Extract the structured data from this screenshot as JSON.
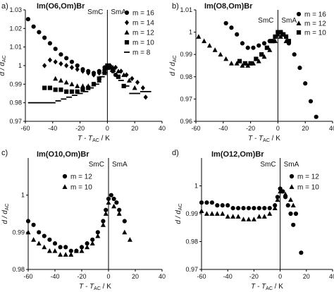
{
  "chart_data": [
    {
      "type": "scatter",
      "panel_letter": "a)",
      "title": "Im(O6,Om)Br",
      "xlabel": "T - T_AC / K",
      "ylabel": "d / d_AC",
      "xlim": [
        -60,
        40
      ],
      "ylim": [
        0.97,
        1.03
      ],
      "xticks": [
        -60,
        -40,
        -20,
        0,
        20,
        40
      ],
      "yticks": [
        0.97,
        0.98,
        0.99,
        1,
        1.01,
        1.02,
        1.03
      ],
      "ytick_labels": [
        "0.97",
        "0.98",
        "0.99",
        "1",
        "1.01",
        "1.02",
        "1.03"
      ],
      "phase_labels": {
        "left": "SmC",
        "right": "SmA"
      },
      "phase_boundary_x": 0,
      "legend_position": "right",
      "series": [
        {
          "name": "m = 16",
          "marker": "circle",
          "x": [
            -58,
            -54,
            -50,
            -46,
            -42,
            -38,
            -34,
            -30,
            -26,
            -22,
            -18,
            -14,
            -10,
            -6,
            -2,
            0,
            2,
            4,
            6
          ],
          "y": [
            1.025,
            1.021,
            1.018,
            1.015,
            1.012,
            1.009,
            1.006,
            1.004,
            1.002,
            1.0,
            0.998,
            0.997,
            0.996,
            0.997,
            0.999,
            1.0,
            0.999,
            0.997,
            0.995
          ]
        },
        {
          "name": "m = 14",
          "marker": "diamond",
          "x": [
            -46,
            -42,
            -38,
            -34,
            -30,
            -26,
            -22,
            -18,
            -14,
            -10,
            -6,
            -2,
            0,
            2,
            6,
            10,
            14,
            18,
            22,
            26,
            28
          ],
          "y": [
            1.0,
            1.003,
            1.002,
            1.001,
            1.0,
            0.999,
            0.998,
            0.997,
            0.996,
            0.995,
            0.996,
            0.998,
            1.0,
            1.0,
            0.999,
            0.997,
            0.995,
            0.993,
            0.991,
            0.988,
            0.983
          ]
        },
        {
          "name": "m = 12",
          "marker": "triangle",
          "x": [
            -38,
            -34,
            -30,
            -26,
            -22,
            -18,
            -14,
            -10,
            -6,
            -2,
            0,
            4,
            8,
            12,
            16,
            20
          ],
          "y": [
            0.993,
            0.992,
            0.991,
            0.99,
            0.989,
            0.989,
            0.989,
            0.99,
            0.992,
            0.996,
            0.999,
            0.999,
            0.997,
            0.995,
            0.992,
            0.988
          ]
        },
        {
          "name": "m = 10",
          "marker": "square",
          "x": [
            -46,
            -42,
            -38,
            -34,
            -30,
            -26,
            -22,
            -18,
            -14,
            -10,
            -6,
            -2,
            0,
            4,
            8,
            12
          ],
          "y": [
            0.988,
            0.988,
            0.987,
            0.987,
            0.986,
            0.986,
            0.986,
            0.987,
            0.988,
            0.99,
            0.993,
            0.997,
            1.0,
            0.998,
            0.994,
            0.989
          ]
        },
        {
          "name": "m = 8",
          "marker": "dash",
          "x": [
            -56,
            -52,
            -48,
            -44,
            -40,
            -36,
            -32,
            -28,
            -24,
            -20,
            -16,
            -12,
            -8,
            -4,
            -2,
            0,
            4,
            10,
            14,
            18,
            22,
            26,
            30
          ],
          "y": [
            0.98,
            0.98,
            0.98,
            0.98,
            0.98,
            0.981,
            0.982,
            0.983,
            0.984,
            0.985,
            0.986,
            0.988,
            0.99,
            0.994,
            0.996,
            0.998,
            0.997,
            0.992,
            0.989,
            0.985,
            0.985,
            0.986,
            0.986
          ]
        }
      ]
    },
    {
      "type": "scatter",
      "panel_letter": "b)",
      "title": "Im(O8,Om)Br",
      "xlabel": "T - T_AC / K",
      "ylabel": "d / d_AC",
      "xlim": [
        -60,
        40
      ],
      "ylim": [
        0.96,
        1.01
      ],
      "xticks": [
        -60,
        -40,
        -20,
        0,
        20,
        40
      ],
      "yticks": [
        0.96,
        0.97,
        0.98,
        0.99,
        1,
        1.01
      ],
      "ytick_labels": [
        "0.96",
        "0.97",
        "0.98",
        "0.99",
        "1",
        "1.01"
      ],
      "phase_labels": {
        "left": "SmC",
        "right": "SmA"
      },
      "phase_boundary_x": 0,
      "legend_position": "top-right",
      "series": [
        {
          "name": "m = 16",
          "marker": "circle",
          "x": [
            -38,
            -34,
            -30,
            -26,
            -22,
            -18,
            -14,
            -10,
            -6,
            -2,
            0,
            2,
            4,
            8,
            12,
            16,
            20,
            24,
            28
          ],
          "y": [
            1.004,
            1.002,
            0.999,
            0.995,
            0.993,
            0.993,
            0.994,
            0.995,
            0.996,
            0.998,
            1.0,
            1.0,
            0.999,
            0.995,
            0.99,
            0.984,
            0.977,
            0.969,
            0.962
          ]
        },
        {
          "name": "m = 12",
          "marker": "triangle",
          "x": [
            -58,
            -54,
            -50,
            -46,
            -42,
            -38,
            -34,
            -30,
            -26,
            -22,
            -18,
            -14,
            -10,
            -6,
            -2,
            0,
            2,
            6
          ],
          "y": [
            0.998,
            0.996,
            0.994,
            0.992,
            0.99,
            0.988,
            0.986,
            0.986,
            0.985,
            0.985,
            0.986,
            0.987,
            0.989,
            0.992,
            0.996,
            0.999,
            0.998,
            0.996
          ]
        },
        {
          "name": "m = 10",
          "marker": "square",
          "x": [
            -28,
            -24,
            -20,
            -16,
            -12,
            -8,
            -4,
            -2,
            0,
            2,
            4,
            6,
            8
          ],
          "y": [
            0.987,
            0.986,
            0.986,
            0.988,
            0.99,
            0.993,
            0.996,
            0.998,
            1.0,
            1.0,
            0.999,
            0.998,
            0.996
          ]
        }
      ]
    },
    {
      "type": "scatter",
      "panel_letter": "c)",
      "title": "Im(O10,Om)Br",
      "xlabel": "T - T_AC / K",
      "ylabel": "d / d_AC",
      "xlim": [
        -60,
        40
      ],
      "ylim": [
        0.98,
        1.01
      ],
      "xticks": [
        -60,
        -40,
        -20,
        0,
        20,
        40
      ],
      "yticks": [
        0.98,
        0.99,
        1
      ],
      "ytick_labels": [
        "0.98",
        "0.99",
        "1"
      ],
      "phase_labels": {
        "left": "SmC",
        "right": "SmA"
      },
      "phase_boundary_x": 0,
      "legend_position": "top-left",
      "series": [
        {
          "name": "m = 12",
          "marker": "circle",
          "x": [
            -60,
            -56,
            -52,
            -48,
            -44,
            -40,
            -36,
            -32,
            -28,
            -24,
            -20,
            -16,
            -12,
            -8,
            -4,
            -2,
            0,
            2,
            4,
            6,
            8,
            12
          ],
          "y": [
            0.993,
            0.992,
            0.99,
            0.989,
            0.988,
            0.987,
            0.986,
            0.986,
            0.985,
            0.985,
            0.986,
            0.987,
            0.988,
            0.99,
            0.993,
            0.996,
            0.999,
            1.0,
            0.999,
            0.998,
            0.996,
            0.993
          ]
        },
        {
          "name": "m = 10",
          "marker": "triangle",
          "x": [
            -60,
            -56,
            -52,
            -48,
            -44,
            -40,
            -36,
            -32,
            -28,
            -24,
            -20,
            -16,
            -12,
            -8,
            -4,
            -2,
            0,
            4,
            8,
            12,
            16
          ],
          "y": [
            0.99,
            0.988,
            0.987,
            0.986,
            0.985,
            0.985,
            0.984,
            0.984,
            0.984,
            0.985,
            0.985,
            0.986,
            0.987,
            0.989,
            0.992,
            0.995,
            0.998,
            0.997,
            0.995,
            0.99,
            0.988
          ]
        }
      ]
    },
    {
      "type": "scatter",
      "panel_letter": "d)",
      "title": "Im(O12,Om)Br",
      "xlabel": "T - T_AC / K",
      "ylabel": "d / d_AC",
      "xlim": [
        -60,
        40
      ],
      "ylim": [
        0.97,
        1.01
      ],
      "xticks": [
        -60,
        -40,
        -20,
        0,
        20,
        40
      ],
      "yticks": [
        0.97,
        0.98,
        0.99,
        1
      ],
      "ytick_labels": [
        "0.97",
        "0.98",
        "0.99",
        "1"
      ],
      "phase_labels": {
        "left": "SmC",
        "right": "SmA"
      },
      "phase_boundary_x": 0,
      "legend_position": "top-right",
      "series": [
        {
          "name": "m = 12",
          "marker": "circle",
          "x": [
            -60,
            -56,
            -52,
            -48,
            -44,
            -40,
            -36,
            -32,
            -28,
            -24,
            -20,
            -16,
            -12,
            -8,
            -4,
            -2,
            0,
            2,
            4,
            6,
            8,
            10,
            12,
            16
          ],
          "y": [
            0.994,
            0.994,
            0.994,
            0.993,
            0.993,
            0.993,
            0.992,
            0.992,
            0.992,
            0.992,
            0.992,
            0.992,
            0.992,
            0.992,
            0.993,
            0.996,
            0.999,
            0.998,
            0.996,
            0.993,
            0.99,
            0.986,
            0.99,
            0.976
          ]
        },
        {
          "name": "m = 10",
          "marker": "triangle",
          "x": [
            -60,
            -56,
            -52,
            -48,
            -44,
            -40,
            -36,
            -32,
            -28,
            -24,
            -20,
            -16,
            -12,
            -8,
            -4,
            -2,
            0,
            4,
            8,
            10
          ],
          "y": [
            0.991,
            0.99,
            0.99,
            0.99,
            0.99,
            0.989,
            0.989,
            0.989,
            0.988,
            0.988,
            0.988,
            0.989,
            0.989,
            0.99,
            0.992,
            0.995,
            0.998,
            0.997,
            0.995,
            0.993
          ]
        }
      ]
    }
  ]
}
